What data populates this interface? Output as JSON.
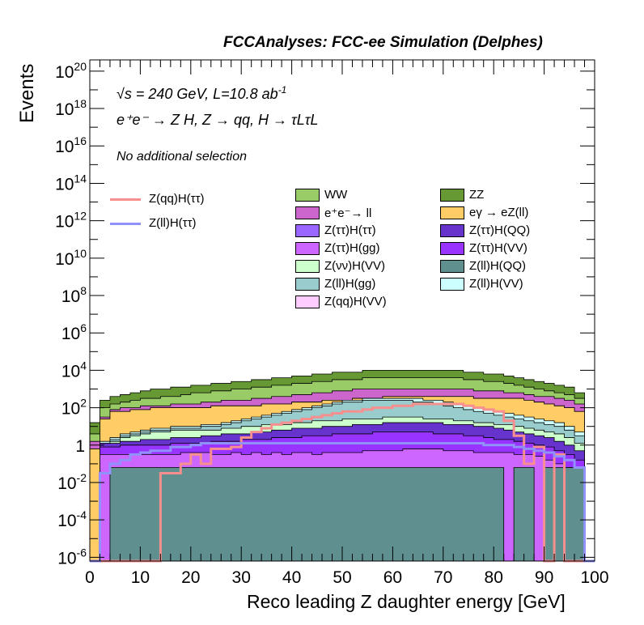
{
  "header": {
    "title": "FCCAnalyses: FCC-ee Simulation (Delphes)",
    "energy_text": "√s = 240 GeV, L=10.8 ab",
    "energy_exp": "-1",
    "process_text": "e⁺e⁻ → Z H, Z → qq, H → τLτL",
    "selection_text": "No additional selection"
  },
  "colors": {
    "signal_red": "#f78f8f",
    "signal_blue": "#9191fa"
  },
  "chart_data": {
    "type": "histogram-stacked",
    "xlabel": "Reco leading Z daughter energy [GeV]",
    "ylabel": "Events",
    "xlim": [
      0,
      100
    ],
    "ylim_log10": [
      -6.2,
      20.6
    ],
    "ylog": true,
    "bin_width": 2,
    "x_ticks": [
      "0",
      "10",
      "20",
      "30",
      "40",
      "50",
      "60",
      "70",
      "80",
      "90",
      "100"
    ],
    "y_ticks": [
      {
        "base": "10",
        "exp": "20",
        "v": 20
      },
      {
        "base": "10",
        "exp": "18",
        "v": 18
      },
      {
        "base": "10",
        "exp": "16",
        "v": 16
      },
      {
        "base": "10",
        "exp": "14",
        "v": 14
      },
      {
        "base": "10",
        "exp": "12",
        "v": 12
      },
      {
        "base": "10",
        "exp": "10",
        "v": 10
      },
      {
        "base": "10",
        "exp": "8",
        "v": 8
      },
      {
        "base": "10",
        "exp": "6",
        "v": 6
      },
      {
        "base": "10",
        "exp": "4",
        "v": 4
      },
      {
        "base": "10",
        "exp": "2",
        "v": 2
      },
      {
        "base": "1",
        "exp": "",
        "v": 0
      },
      {
        "base": "10",
        "exp": "-2",
        "v": -2
      },
      {
        "base": "10",
        "exp": "-4",
        "v": -4
      },
      {
        "base": "10",
        "exp": "-6",
        "v": -6
      }
    ],
    "stack_log10_tops": [
      {
        "name": "Z(ll)H(QQ)",
        "color": "#5f8f8f",
        "values": [
          -6.2,
          -6.2,
          -1.2,
          -1.2,
          -1.2,
          -1.2,
          -1.2,
          -1.2,
          -1.2,
          -1.2,
          -1.2,
          -1.2,
          -1.2,
          -1.2,
          -1.2,
          -1.2,
          -1.2,
          -1.2,
          -1.2,
          -1.2,
          -1.2,
          -1.2,
          -1.2,
          -1.2,
          -1.2,
          -1.2,
          -1.2,
          -1.2,
          -1.2,
          -1.2,
          -1.2,
          -1.2,
          -1.2,
          -1.2,
          -1.2,
          -1.2,
          -1.2,
          -1.2,
          -1.2,
          -1.2,
          -1.2,
          -6.2,
          -1.2,
          -1.2,
          -6.2,
          -1.2,
          -1.2,
          -1.2,
          -1.2,
          -6.2
        ]
      },
      {
        "name": "Z(ττ)H(gg)",
        "color": "#cc66ff",
        "values": [
          -6.2,
          -0.5,
          -0.5,
          -0.5,
          -0.5,
          -0.5,
          -0.5,
          -0.5,
          -0.5,
          -0.4,
          -0.4,
          -0.4,
          -0.5,
          -0.5,
          -0.4,
          -0.5,
          -0.4,
          -0.5,
          -0.4,
          -0.5,
          -0.4,
          -0.4,
          -0.5,
          -0.4,
          -0.4,
          -0.4,
          -0.4,
          -0.3,
          -0.3,
          -0.3,
          -0.3,
          -0.2,
          -0.2,
          -0.2,
          -0.2,
          -0.3,
          -0.3,
          -0.3,
          -0.4,
          -0.4,
          -0.4,
          -0.4,
          -0.5,
          -0.5,
          -0.6,
          -0.8,
          -1.0,
          -1.2,
          -1.5,
          -6.2
        ]
      },
      {
        "name": "Z(ττ)H(VV)",
        "color": "#9933ff",
        "values": [
          -6.2,
          -0.1,
          -0.1,
          0.0,
          0.0,
          0.0,
          0.0,
          0.0,
          0.1,
          0.1,
          0.1,
          0.1,
          0.2,
          0.2,
          0.2,
          0.3,
          0.3,
          0.3,
          0.4,
          0.4,
          0.4,
          0.5,
          0.5,
          0.5,
          0.6,
          0.6,
          0.6,
          0.6,
          0.7,
          0.7,
          0.7,
          0.7,
          0.7,
          0.7,
          0.6,
          0.6,
          0.6,
          0.5,
          0.5,
          0.4,
          0.3,
          0.3,
          0.2,
          0.1,
          0.0,
          -0.1,
          -0.3,
          -0.5,
          -0.8,
          -6.2
        ]
      },
      {
        "name": "Z(ττ)H(QQ)",
        "color": "#6633cc",
        "values": [
          -6.2,
          0.1,
          0.1,
          0.2,
          0.2,
          0.3,
          0.3,
          0.3,
          0.4,
          0.4,
          0.4,
          0.5,
          0.5,
          0.6,
          0.6,
          0.6,
          0.7,
          0.7,
          0.8,
          0.8,
          0.9,
          0.9,
          0.9,
          1.0,
          1.0,
          1.0,
          1.1,
          1.1,
          1.1,
          1.2,
          1.2,
          1.2,
          1.2,
          1.2,
          1.2,
          1.1,
          1.1,
          1.1,
          1.0,
          1.0,
          0.9,
          0.8,
          0.7,
          0.6,
          0.5,
          0.4,
          0.2,
          0.0,
          -0.3,
          -6.2
        ]
      },
      {
        "name": "Z(νν)H(VV)",
        "color": "#ccffcc",
        "values": [
          -6.2,
          -0.1,
          0.2,
          0.4,
          0.5,
          0.6,
          0.7,
          0.7,
          0.8,
          0.8,
          0.8,
          0.8,
          0.8,
          0.9,
          0.9,
          1.0,
          1.0,
          1.1,
          1.1,
          1.1,
          1.2,
          1.2,
          1.3,
          1.3,
          1.3,
          1.4,
          1.4,
          1.4,
          1.4,
          1.5,
          1.5,
          1.5,
          1.5,
          1.4,
          1.4,
          1.4,
          1.3,
          1.3,
          1.2,
          1.2,
          1.1,
          1.1,
          1.0,
          0.9,
          0.8,
          0.7,
          0.6,
          0.4,
          0.1,
          -6.2
        ]
      },
      {
        "name": "Z(ll)H(gg)",
        "color": "#99cccc",
        "values": [
          -6.2,
          0.1,
          0.3,
          0.5,
          0.6,
          0.7,
          0.8,
          0.8,
          0.9,
          0.9,
          0.9,
          1.0,
          1.0,
          1.1,
          1.2,
          1.3,
          1.4,
          1.5,
          1.6,
          1.7,
          1.8,
          1.9,
          2.0,
          2.1,
          2.2,
          2.3,
          2.3,
          2.4,
          2.4,
          2.4,
          2.4,
          2.4,
          2.3,
          2.3,
          2.2,
          2.1,
          2.0,
          1.9,
          1.8,
          1.7,
          1.6,
          1.5,
          1.4,
          1.3,
          1.2,
          1.1,
          1.0,
          0.8,
          0.5,
          -6.2
        ]
      },
      {
        "name": "Z(ll)H(VV)",
        "color": "#ccffff",
        "values": [
          -6.2,
          0.2,
          0.4,
          0.6,
          0.7,
          0.8,
          0.9,
          0.9,
          1.0,
          1.0,
          1.0,
          1.1,
          1.1,
          1.2,
          1.3,
          1.4,
          1.5,
          1.6,
          1.7,
          1.8,
          1.9,
          2.0,
          2.1,
          2.2,
          2.3,
          2.4,
          2.4,
          2.5,
          2.5,
          2.5,
          2.5,
          2.5,
          2.5,
          2.4,
          2.4,
          2.3,
          2.2,
          2.1,
          2.0,
          1.9,
          1.8,
          1.7,
          1.6,
          1.5,
          1.4,
          1.3,
          1.2,
          1.0,
          0.7,
          -6.2
        ]
      },
      {
        "name": "eγ → eZ(ll)",
        "color": "#ffcc66",
        "values": [
          -0.2,
          1.4,
          1.8,
          1.8,
          1.9,
          1.9,
          2.0,
          2.0,
          2.0,
          2.0,
          2.0,
          2.0,
          2.1,
          2.1,
          2.1,
          2.1,
          2.1,
          2.2,
          2.2,
          2.2,
          2.3,
          2.3,
          2.3,
          2.4,
          2.4,
          2.4,
          2.5,
          2.5,
          2.5,
          2.6,
          2.6,
          2.6,
          2.6,
          2.6,
          2.6,
          2.6,
          2.6,
          2.6,
          2.5,
          2.5,
          2.5,
          2.5,
          2.5,
          2.4,
          2.3,
          2.2,
          2.1,
          2.0,
          1.8,
          -6.2
        ]
      },
      {
        "name": "Z(qq)H(VV)",
        "color": "#ffccff",
        "values": [
          -0.2,
          1.4,
          1.8,
          1.8,
          1.9,
          1.9,
          2.0,
          2.0,
          2.0,
          2.0,
          2.0,
          2.0,
          2.1,
          2.1,
          2.1,
          2.1,
          2.1,
          2.2,
          2.2,
          2.2,
          2.3,
          2.3,
          2.3,
          2.4,
          2.4,
          2.4,
          2.5,
          2.5,
          2.5,
          2.6,
          2.6,
          2.6,
          2.6,
          2.6,
          2.6,
          2.6,
          2.6,
          2.6,
          2.5,
          2.5,
          2.5,
          2.5,
          2.5,
          2.4,
          2.3,
          2.2,
          2.1,
          2.0,
          1.8,
          -6.2
        ]
      },
      {
        "name": "e⁺e⁻→ ll",
        "color": "#cc66cc",
        "values": [
          0.2,
          1.5,
          1.9,
          2.0,
          2.0,
          2.1,
          2.1,
          2.1,
          2.2,
          2.2,
          2.2,
          2.3,
          2.3,
          2.4,
          2.4,
          2.4,
          2.5,
          2.5,
          2.6,
          2.6,
          2.7,
          2.7,
          2.8,
          2.8,
          2.9,
          2.9,
          3.0,
          3.0,
          3.0,
          3.0,
          3.0,
          3.0,
          3.0,
          3.0,
          3.0,
          3.0,
          3.0,
          3.0,
          2.9,
          2.9,
          2.9,
          2.8,
          2.8,
          2.7,
          2.6,
          2.6,
          2.5,
          2.4,
          2.2,
          -6.2
        ]
      },
      {
        "name": "WW",
        "color": "#99cc66",
        "values": [
          0.6,
          2.0,
          2.2,
          2.3,
          2.4,
          2.5,
          2.5,
          2.6,
          2.6,
          2.7,
          2.8,
          2.8,
          2.9,
          2.9,
          3.0,
          3.0,
          3.1,
          3.1,
          3.2,
          3.2,
          3.3,
          3.3,
          3.4,
          3.4,
          3.5,
          3.5,
          3.5,
          3.6,
          3.6,
          3.6,
          3.6,
          3.6,
          3.6,
          3.6,
          3.6,
          3.6,
          3.6,
          3.5,
          3.5,
          3.4,
          3.4,
          3.3,
          3.2,
          3.1,
          3.0,
          2.9,
          2.8,
          2.7,
          2.5,
          -6.2
        ]
      },
      {
        "name": "ZZ",
        "color": "#669933",
        "values": [
          1.2,
          2.4,
          2.6,
          2.7,
          2.8,
          2.9,
          3.0,
          3.0,
          3.1,
          3.1,
          3.2,
          3.2,
          3.3,
          3.3,
          3.4,
          3.4,
          3.5,
          3.5,
          3.6,
          3.6,
          3.7,
          3.7,
          3.8,
          3.8,
          3.9,
          3.9,
          3.9,
          4.0,
          4.0,
          4.0,
          4.0,
          4.0,
          4.0,
          4.0,
          4.0,
          4.0,
          4.0,
          3.9,
          3.9,
          3.8,
          3.8,
          3.7,
          3.6,
          3.5,
          3.4,
          3.3,
          3.2,
          3.1,
          2.8,
          -6.2
        ]
      }
    ],
    "signal_lines": [
      {
        "name": "Z(qq)H(ττ)",
        "color": "#f78f8f",
        "values": [
          -6.2,
          -6.2,
          -6.2,
          -6.2,
          -6.2,
          -6.2,
          -6.2,
          -1.5,
          -1.5,
          -1.0,
          -0.5,
          -1.0,
          -0.2,
          -0.2,
          -0.1,
          0.4,
          0.7,
          0.9,
          1.1,
          1.2,
          1.3,
          1.4,
          1.5,
          1.6,
          1.7,
          1.8,
          1.8,
          1.9,
          2.0,
          2.0,
          2.1,
          2.1,
          2.2,
          2.2,
          2.2,
          2.2,
          2.2,
          2.1,
          2.0,
          1.9,
          1.8,
          1.3,
          0.5,
          -1.0,
          -0.1,
          -6.2,
          -0.5,
          -6.2,
          -6.2,
          -6.2
        ]
      },
      {
        "name": "Z(ll)H(ττ)",
        "color": "#9191fa",
        "values": [
          -6.2,
          -1.5,
          -1.0,
          -0.8,
          -0.5,
          -0.4,
          -0.3,
          -0.3,
          -0.1,
          -0.1,
          0.0,
          0.1,
          0.1,
          0.1,
          0.1,
          0.1,
          0.1,
          0.1,
          0.1,
          0.1,
          0.1,
          0.1,
          0.1,
          0.1,
          0.1,
          0.1,
          0.1,
          0.1,
          0.1,
          0.1,
          0.1,
          0.1,
          0.1,
          0.1,
          0.1,
          0.1,
          0.1,
          0.1,
          0.1,
          0.0,
          0.0,
          0.0,
          -0.1,
          -0.2,
          -0.3,
          -0.4,
          -0.6,
          -0.8,
          -1.2,
          -6.2
        ]
      }
    ]
  },
  "legend": {
    "signals": [
      {
        "label": "Z(qq)H(ττ)",
        "color": "#f78f8f"
      },
      {
        "label": "Z(ll)H(ττ)",
        "color": "#9191fa"
      }
    ],
    "backgrounds": [
      {
        "label": "WW",
        "color": "#99cc66"
      },
      {
        "label": "ZZ",
        "color": "#669933"
      },
      {
        "label": "e⁺e⁻→ ll",
        "color": "#cc66cc"
      },
      {
        "label": "eγ → eZ(ll)",
        "color": "#ffcc66"
      },
      {
        "label": "Z(ττ)H(ττ)",
        "color": "#9966ff"
      },
      {
        "label": "Z(ττ)H(QQ)",
        "color": "#6633cc"
      },
      {
        "label": "Z(ττ)H(gg)",
        "color": "#cc66ff"
      },
      {
        "label": "Z(ττ)H(VV)",
        "color": "#9933ff"
      },
      {
        "label": "Z(νν)H(VV)",
        "color": "#ccffcc"
      },
      {
        "label": "Z(ll)H(QQ)",
        "color": "#5f8f8f"
      },
      {
        "label": "Z(ll)H(gg)",
        "color": "#99cccc"
      },
      {
        "label": "Z(ll)H(VV)",
        "color": "#ccffff"
      },
      {
        "label": "Z(qq)H(VV)",
        "color": "#ffccff"
      }
    ]
  }
}
